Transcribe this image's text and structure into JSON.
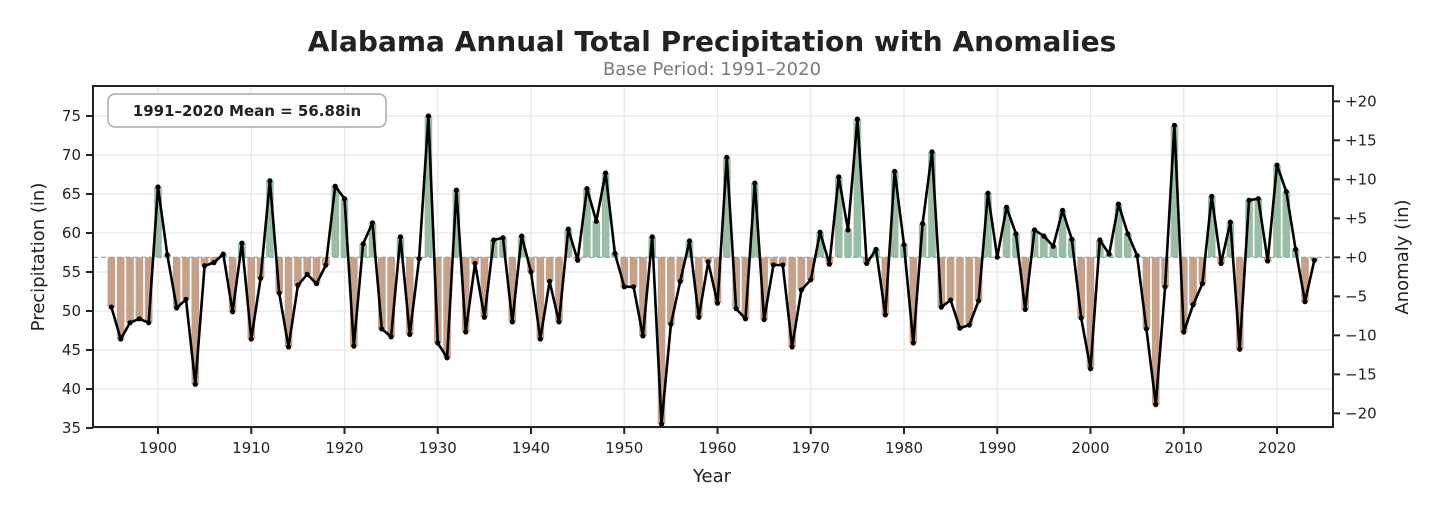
{
  "chart_data": {
    "type": "bar",
    "title": "Alabama Annual Total Precipitation with Anomalies",
    "subtitle": "Base Period: 1991–2020",
    "xlabel": "Year",
    "ylabel": "Precipitation (in)",
    "y2label": "Anomaly (in)",
    "annotation": "1991–2020 Mean = 56.88in",
    "mean": 56.88,
    "xlim": [
      1893.5,
      2026.5
    ],
    "ylim": [
      35,
      78.5
    ],
    "y2lim": [
      -21.88,
      21.62
    ],
    "grid": true,
    "x_ticks": [
      "1900",
      "1910",
      "1920",
      "1930",
      "1940",
      "1950",
      "1960",
      "1970",
      "1980",
      "1990",
      "2000",
      "2010",
      "2020"
    ],
    "y_ticks": [
      "35",
      "40",
      "45",
      "50",
      "55",
      "60",
      "65",
      "70",
      "75"
    ],
    "y2_ticks": [
      "+20",
      "+15",
      "+10",
      "+5",
      "+0",
      "−5",
      "−10",
      "−15",
      "−20"
    ],
    "colors": {
      "above": "#93b9a0",
      "below": "#c39c84",
      "line": "#000000",
      "mean_line": "#999999"
    },
    "start_year": 1895,
    "values": [
      50.5,
      46.4,
      48.5,
      49.0,
      48.5,
      65.9,
      57.2,
      50.4,
      51.5,
      40.6,
      55.8,
      56.2,
      57.3,
      49.9,
      58.7,
      46.4,
      54.2,
      66.7,
      52.3,
      45.4,
      53.3,
      54.7,
      53.5,
      55.9,
      66.0,
      64.4,
      45.5,
      58.6,
      61.3,
      47.7,
      46.7,
      59.5,
      47.0,
      56.7,
      75.0,
      45.9,
      44.0,
      65.5,
      47.3,
      56.1,
      49.2,
      59.1,
      59.4,
      48.6,
      59.6,
      55.0,
      46.4,
      53.8,
      48.6,
      60.5,
      56.5,
      65.7,
      61.5,
      67.7,
      57.4,
      53.1,
      53.1,
      46.8,
      59.5,
      35.5,
      48.3,
      53.8,
      59.0,
      49.2,
      56.3,
      51.0,
      69.7,
      50.3,
      49.0,
      66.4,
      48.9,
      55.9,
      55.9,
      45.4,
      52.7,
      54.0,
      60.1,
      56.0,
      67.2,
      60.4,
      74.6,
      56.1,
      57.9,
      49.5,
      67.9,
      58.5,
      45.9,
      61.2,
      70.4,
      50.5,
      51.4,
      47.8,
      48.2,
      51.3,
      65.1,
      56.9,
      63.3,
      59.9,
      50.2,
      60.4,
      59.6,
      58.3,
      62.9,
      59.2,
      49.1,
      42.6,
      59.1,
      57.3,
      63.7,
      59.9,
      57.1,
      47.7,
      38.0,
      53.1,
      73.8,
      47.3,
      50.8,
      53.5,
      64.7,
      56.1,
      61.4,
      45.1,
      64.2,
      64.4,
      56.4,
      68.7,
      65.3,
      57.9,
      51.2,
      56.5
    ]
  }
}
